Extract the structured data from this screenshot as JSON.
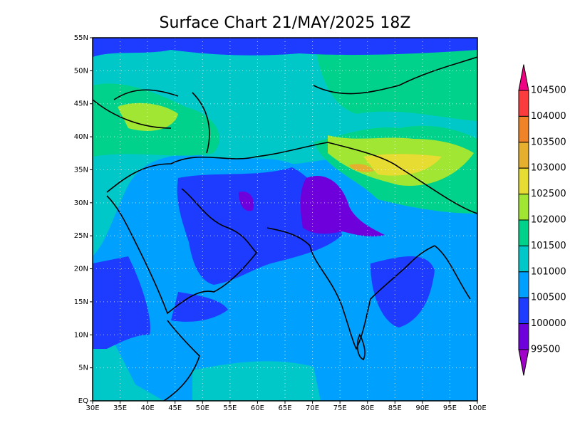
{
  "map": {
    "title": "Surface Chart 21/MAY/2025 18Z",
    "x_labels": [
      "30E",
      "35E",
      "40E",
      "45E",
      "50E",
      "55E",
      "60E",
      "65E",
      "70E",
      "75E",
      "80E",
      "85E",
      "90E",
      "95E",
      "100E"
    ],
    "y_labels": [
      "EQ",
      "5N",
      "10N",
      "15N",
      "20N",
      "25N",
      "30N",
      "35N",
      "40N",
      "45N",
      "50N",
      "55N"
    ]
  },
  "colorbar": {
    "labels": [
      "104500",
      "104000",
      "103500",
      "103000",
      "102500",
      "102000",
      "101500",
      "101000",
      "100500",
      "100000",
      "99500"
    ],
    "colors": [
      "#f00082",
      "#fa3c3c",
      "#f08228",
      "#e6af2d",
      "#e6dc32",
      "#a0e632",
      "#00d28c",
      "#00c8c8",
      "#00a0ff",
      "#1e3cff",
      "#6e00dc",
      "#a000c8"
    ]
  }
}
